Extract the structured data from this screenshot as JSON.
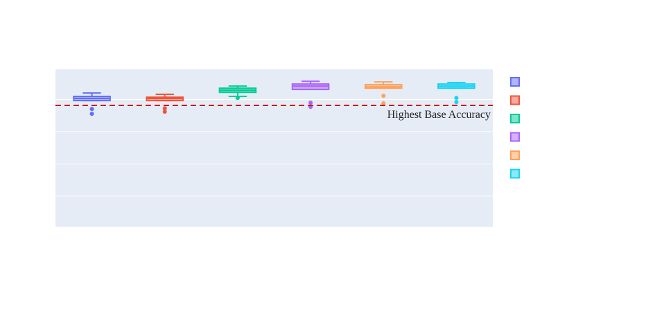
{
  "chart_data": {
    "type": "box",
    "ylim": [
      0.01,
      0.987
    ],
    "yticks": [
      0.2,
      0.4,
      0.6,
      0.8
    ],
    "grid": true,
    "series": [
      {
        "color": "#636efa",
        "lower": 0.793,
        "q1": 0.793,
        "median": 0.806,
        "q3": 0.819,
        "upper": 0.84,
        "outliers": [
          0.741,
          0.711
        ]
      },
      {
        "color": "#ef553b",
        "lower": 0.793,
        "q1": 0.793,
        "median": 0.806,
        "q3": 0.814,
        "upper": 0.832,
        "outliers": [
          0.745,
          0.724
        ]
      },
      {
        "color": "#00cc96",
        "lower": 0.819,
        "q1": 0.844,
        "median": 0.857,
        "q3": 0.87,
        "upper": 0.883,
        "outliers": [
          0.81
        ]
      },
      {
        "color": "#ab63fa",
        "lower": 0.862,
        "q1": 0.862,
        "median": 0.883,
        "q3": 0.896,
        "upper": 0.913,
        "outliers": [
          0.78,
          0.754
        ]
      },
      {
        "color": "#ffa15a",
        "lower": 0.87,
        "q1": 0.87,
        "median": 0.879,
        "q3": 0.892,
        "upper": 0.909,
        "outliers": [
          0.823,
          0.776
        ]
      },
      {
        "color": "#19d3f3",
        "lower": 0.87,
        "q1": 0.87,
        "median": 0.883,
        "q3": 0.896,
        "upper": 0.905,
        "outliers": [
          0.81,
          0.784
        ]
      }
    ],
    "hline": {
      "value": 0.763,
      "color": "#cc1111",
      "label": "Highest Base Accuracy"
    }
  }
}
